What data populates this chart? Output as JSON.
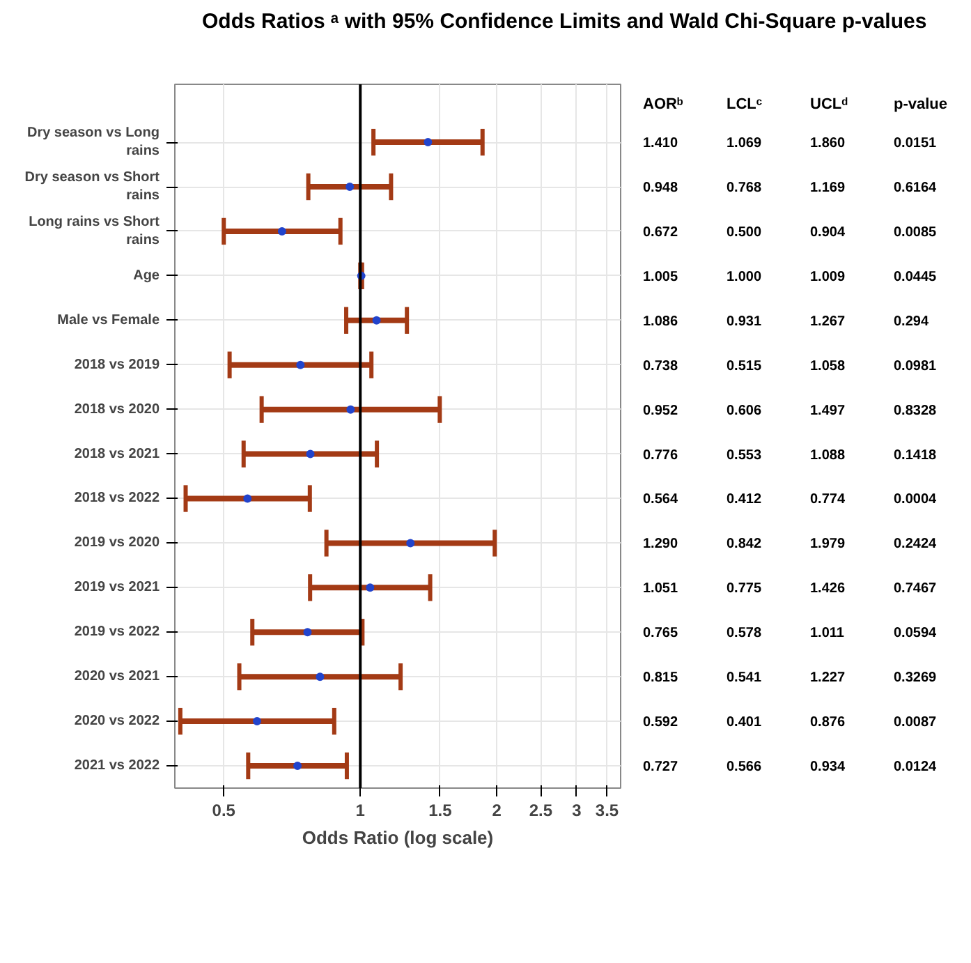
{
  "chart_data": {
    "type": "scatter",
    "orientation": "horizontal",
    "title": "Odds Ratios ᵃ with 95% Confidence Limits and Wald Chi-Square p-values",
    "xlabel": "Odds Ratio (log scale)",
    "categories": [
      "Dry season vs Long rains",
      "Dry season vs Short rains",
      "Long rains vs Short rains",
      "Age",
      "Male vs Female",
      "2018 vs 2019",
      "2018 vs 2020",
      "2018 vs 2021",
      "2018 vs 2022",
      "2019 vs 2020",
      "2019 vs 2021",
      "2019 vs 2022",
      "2020 vs 2021",
      "2020 vs 2022",
      "2021 vs 2022"
    ],
    "series": [
      {
        "color": "#2244cc",
        "values": [
          1.41,
          0.948,
          0.672,
          1.005,
          1.086,
          0.738,
          0.952,
          0.776,
          0.564,
          1.29,
          1.051,
          0.765,
          0.815,
          0.592,
          0.727
        ],
        "value_labels": [
          "1.410",
          "0.948",
          "0.672",
          "1.005",
          "1.086",
          "0.738",
          "0.952",
          "0.776",
          "0.564",
          "1.290",
          "1.051",
          "0.765",
          "0.815",
          "0.592",
          "0.727"
        ],
        "errors": [
          [
            1.069,
            1.86
          ],
          [
            0.768,
            1.169
          ],
          [
            0.5,
            0.904
          ],
          [
            1.0,
            1.009
          ],
          [
            0.931,
            1.267
          ],
          [
            0.515,
            1.058
          ],
          [
            0.606,
            1.497
          ],
          [
            0.553,
            1.088
          ],
          [
            0.412,
            0.774
          ],
          [
            0.842,
            1.979
          ],
          [
            0.775,
            1.426
          ],
          [
            0.578,
            1.011
          ],
          [
            0.541,
            1.227
          ],
          [
            0.401,
            0.876
          ],
          [
            0.566,
            0.934
          ]
        ]
      }
    ],
    "marker": "circle",
    "log": "x",
    "xlim": [
      0.39,
      3.75
    ],
    "xticks": [
      0.5,
      1,
      1.5,
      2,
      2.5,
      3,
      3.5
    ],
    "grid": true,
    "ref_lines": [
      {
        "axis": "x",
        "value": 1,
        "color": "#000000"
      }
    ],
    "annotations": [
      "AORᵇ",
      "LCLᶜ",
      "UCLᵈ",
      "p-value",
      "1.069",
      "1.860",
      "0.0151",
      "0.768",
      "1.169",
      "0.6164",
      "0.500",
      "0.904",
      "0.0085",
      "1.000",
      "1.009",
      "0.0445",
      "0.931",
      "1.267",
      "0.294",
      "0.515",
      "1.058",
      "0.0981",
      "0.606",
      "1.497",
      "0.8328",
      "0.553",
      "1.088",
      "0.1418",
      "0.412",
      "0.774",
      "0.0004",
      "0.842",
      "1.979",
      "0.2424",
      "0.775",
      "1.426",
      "0.7467",
      "0.578",
      "1.011",
      "0.0594",
      "0.541",
      "1.227",
      "0.3269",
      "0.401",
      "0.876",
      "0.0087",
      "0.566",
      "0.934",
      "0.0124"
    ]
  }
}
